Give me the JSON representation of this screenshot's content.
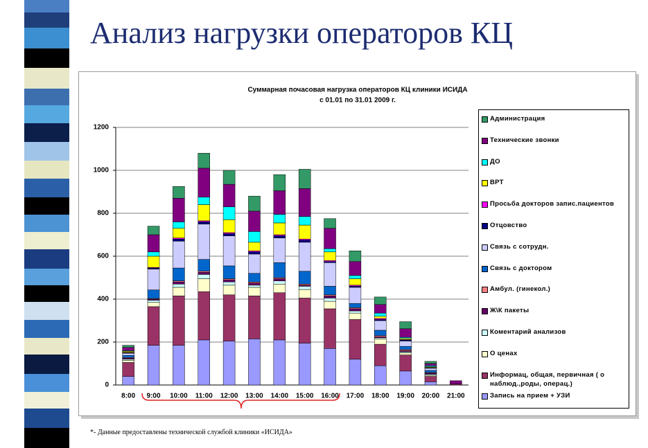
{
  "slide_title": "Анализ нагрузки операторов КЦ",
  "footnote": "*- Данные предоставлены технической службой клиники «ИСИДА»",
  "chart_data": {
    "type": "stacked-bar",
    "title": "Суммарная почасовая нагрузка операторов КЦ клиники ИСИДА",
    "subtitle": "с 01.01 по 31.01 2009 г.",
    "categories": [
      "8:00",
      "9:00",
      "10:00",
      "11:00",
      "12:00",
      "13:00",
      "14:00",
      "15:00",
      "16:00",
      "17:00",
      "18:00",
      "19:00",
      "20:00",
      "21:00"
    ],
    "ylim": [
      0,
      1200
    ],
    "yticks": [
      0,
      200,
      400,
      600,
      800,
      1000,
      1200
    ],
    "grid": true,
    "legend": "right",
    "series": [
      {
        "name": "Запись на прием + УЗИ",
        "color": "#9999ff",
        "values": [
          40,
          185,
          185,
          210,
          205,
          215,
          210,
          195,
          170,
          120,
          90,
          65,
          15,
          0
        ]
      },
      {
        "name": "Информац, общая, первичная ( о наблюд.,роды, операц.)",
        "color": "#993366",
        "values": [
          65,
          180,
          230,
          225,
          215,
          200,
          220,
          210,
          185,
          185,
          100,
          75,
          25,
          5
        ]
      },
      {
        "name": "О ценах",
        "color": "#ffffcc",
        "values": [
          10,
          20,
          40,
          60,
          45,
          40,
          40,
          40,
          35,
          30,
          25,
          10,
          5,
          0
        ]
      },
      {
        "name": "Коментарий анализов",
        "color": "#ccffff",
        "values": [
          5,
          10,
          15,
          20,
          15,
          10,
          15,
          15,
          15,
          10,
          5,
          5,
          5,
          0
        ]
      },
      {
        "name": "Ж\\К пакеты",
        "color": "#660066",
        "values": [
          5,
          5,
          10,
          10,
          10,
          10,
          10,
          5,
          10,
          10,
          5,
          5,
          5,
          0
        ]
      },
      {
        "name": "Амбул. (гинекол.)",
        "color": "#ff8080",
        "values": [
          3,
          3,
          5,
          5,
          5,
          5,
          5,
          5,
          5,
          5,
          5,
          5,
          3,
          0
        ]
      },
      {
        "name": "Связь с доктором",
        "color": "#0066cc",
        "values": [
          10,
          40,
          60,
          55,
          60,
          40,
          70,
          60,
          40,
          20,
          25,
          15,
          10,
          0
        ]
      },
      {
        "name": "Связь с сотрудн.",
        "color": "#ccccff",
        "values": [
          10,
          97,
          125,
          165,
          140,
          90,
          115,
          135,
          110,
          75,
          45,
          25,
          10,
          0
        ]
      },
      {
        "name": "Отцовство",
        "color": "#000080",
        "values": [
          2,
          5,
          10,
          10,
          10,
          10,
          10,
          10,
          5,
          5,
          5,
          5,
          2,
          0
        ]
      },
      {
        "name": "Просьба докторов запис.пациентов",
        "color": "#ff00ff",
        "values": [
          2,
          3,
          5,
          5,
          5,
          5,
          5,
          5,
          5,
          5,
          5,
          2,
          2,
          0
        ]
      },
      {
        "name": "ВРТ",
        "color": "#ffff00",
        "values": [
          5,
          52,
          45,
          75,
          60,
          40,
          55,
          65,
          40,
          30,
          10,
          5,
          3,
          0
        ]
      },
      {
        "name": "ДО",
        "color": "#00ffff",
        "values": [
          3,
          20,
          30,
          35,
          60,
          50,
          40,
          40,
          15,
          15,
          15,
          5,
          5,
          0
        ]
      },
      {
        "name": "Технические звонки",
        "color": "#800080",
        "values": [
          15,
          80,
          110,
          135,
          105,
          95,
          110,
          130,
          95,
          65,
          40,
          40,
          10,
          15
        ]
      },
      {
        "name": "Администрация",
        "color": "#339966",
        "values": [
          10,
          40,
          55,
          70,
          65,
          70,
          75,
          90,
          45,
          50,
          35,
          33,
          10,
          0
        ]
      }
    ]
  }
}
